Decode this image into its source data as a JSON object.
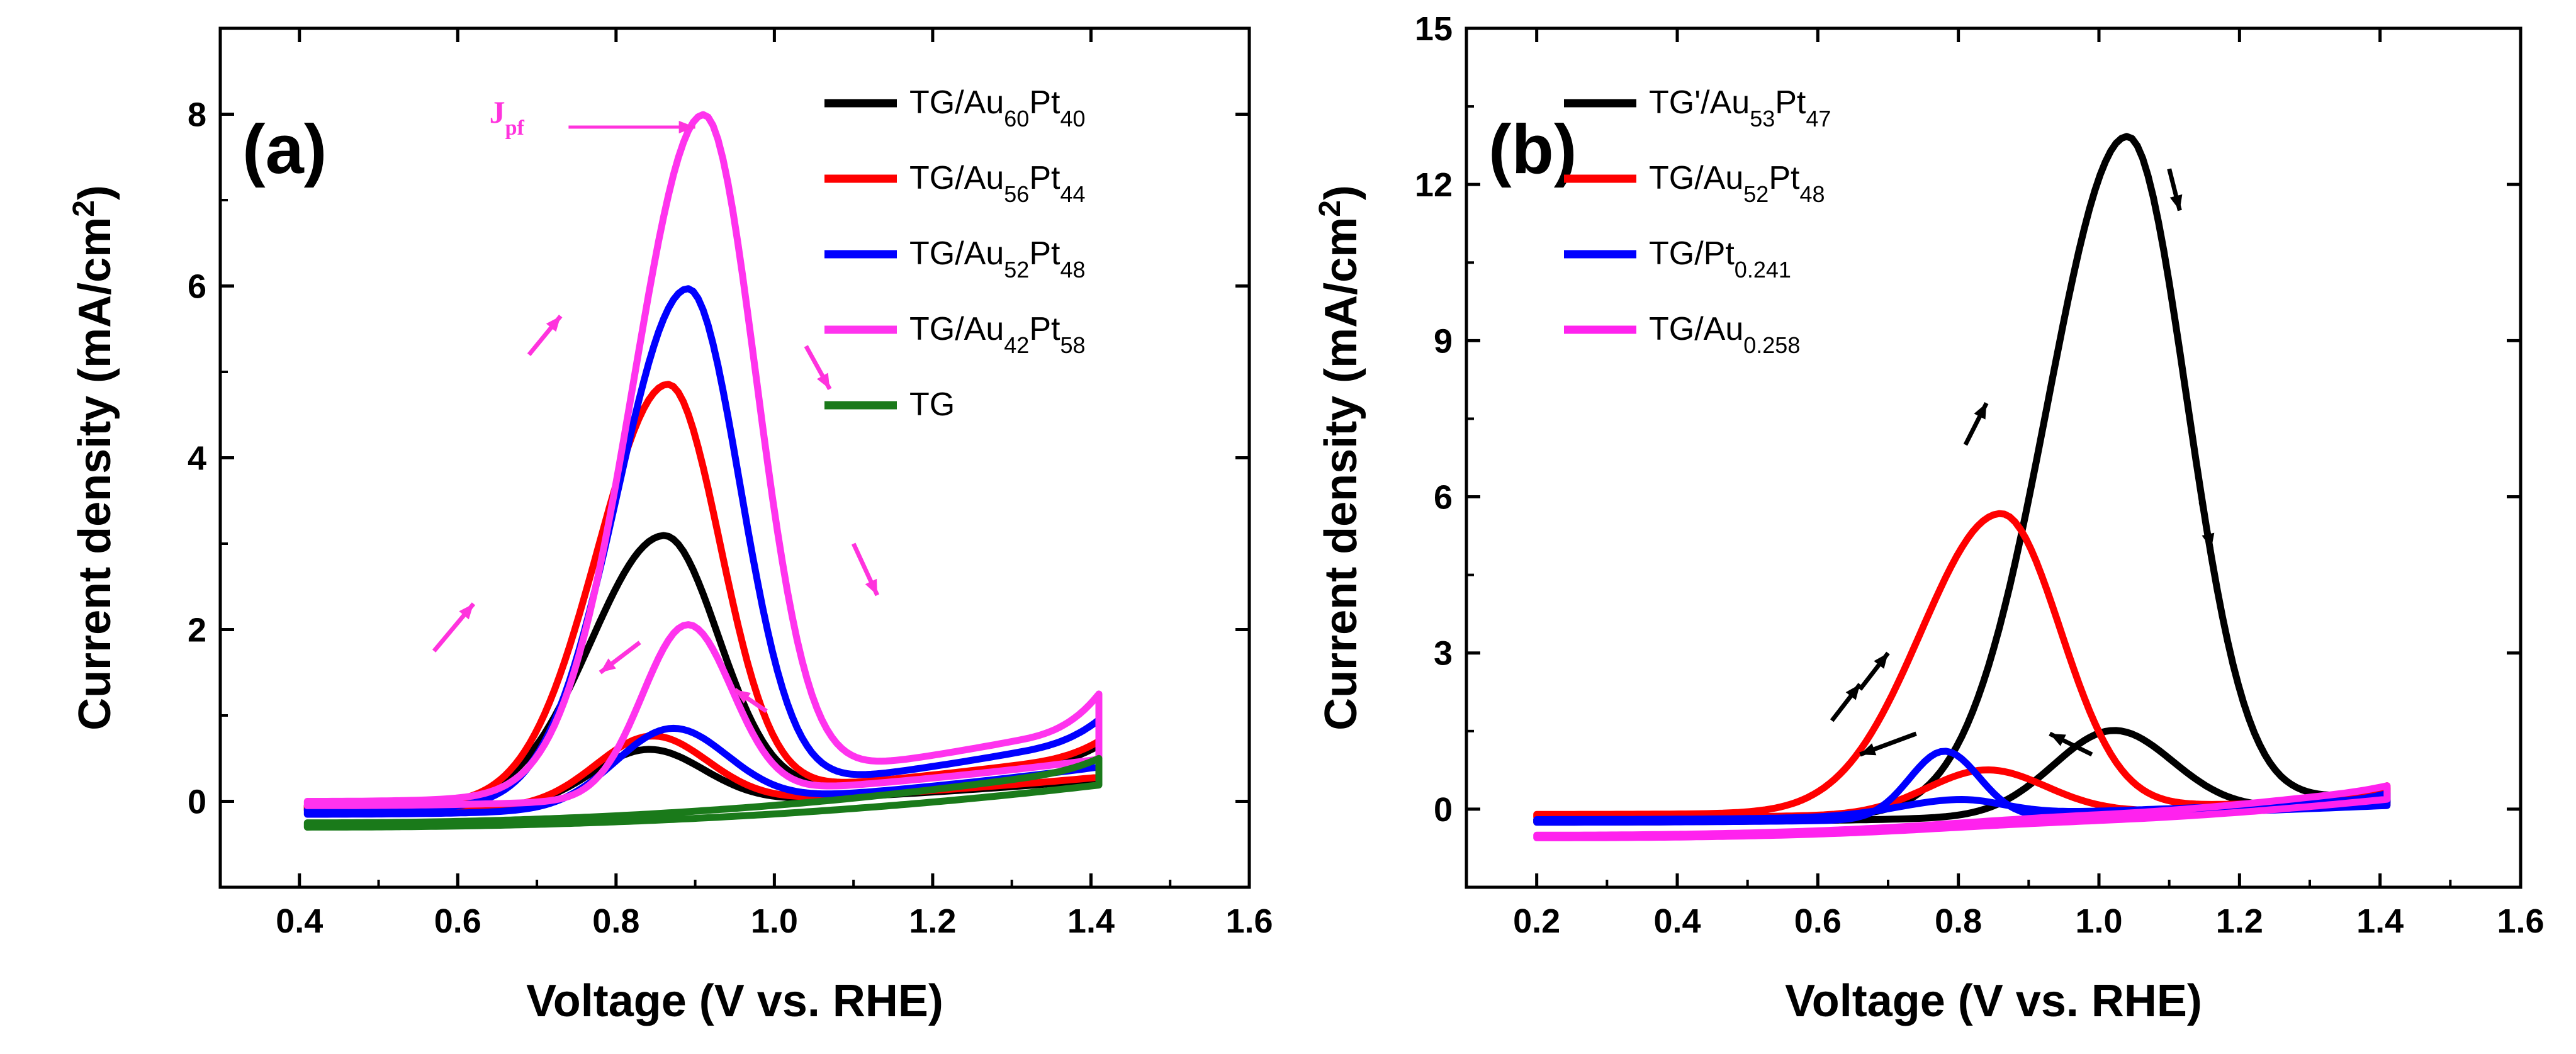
{
  "chart_data": [
    {
      "type": "line",
      "panel_label": "(a)",
      "xlabel": "Voltage (V vs. RHE)",
      "ylabel": "Current density (mA/cm²)",
      "ylabel_parts": {
        "main": "Current density (mA/cm",
        "sup": "2",
        "end": ")"
      },
      "xlim": [
        0.3,
        1.6
      ],
      "ylim": [
        -1.0,
        9.0
      ],
      "xticks": [
        "0.4",
        "0.6",
        "0.8",
        "1.0",
        "1.2",
        "1.4",
        "1.6"
      ],
      "yticks": [
        "0",
        "2",
        "4",
        "6",
        "8"
      ],
      "legend_position": "top-right",
      "annotation": {
        "text": "J",
        "sub": "pf",
        "color": "#ff33dd"
      },
      "series": [
        {
          "name": "TG/Au60Pt40",
          "label": {
            "pre": "TG/Au",
            "s1": "60",
            "mid": "Pt",
            "s2": "40"
          },
          "color": "#000000",
          "peak_x": 0.86,
          "peak_y": 3.05,
          "width": 0.13,
          "rev_peak": 0.65,
          "rev_width": 0.1,
          "baseline_end": 0.5,
          "tail": 0.65,
          "start_y": -0.05
        },
        {
          "name": "TG/Au56Pt44",
          "label": {
            "pre": "TG/Au",
            "s1": "56",
            "mid": "Pt",
            "s2": "44"
          },
          "color": "#ff0000",
          "peak_x": 0.865,
          "peak_y": 4.8,
          "width": 0.125,
          "rev_peak": 0.8,
          "rev_width": 0.1,
          "baseline_end": 0.55,
          "tail": 0.7,
          "start_y": -0.05
        },
        {
          "name": "TG/Au52Pt48",
          "label": {
            "pre": "TG/Au",
            "s1": "52",
            "mid": "Pt",
            "s2": "48"
          },
          "color": "#0000ff",
          "peak_x": 0.89,
          "peak_y": 5.9,
          "width": 0.125,
          "rev_peak": 0.9,
          "rev_width": 0.1,
          "baseline_end": 0.75,
          "tail": 0.95,
          "start_y": -0.1
        },
        {
          "name": "TG/Au42Pt58",
          "label": {
            "pre": "TG/Au",
            "s1": "42",
            "mid": "Pt",
            "s2": "58"
          },
          "color": "#ff33ee",
          "peak_x": 0.91,
          "peak_y": 7.8,
          "width": 0.125,
          "rev_peak": 2.0,
          "rev_width": 0.08,
          "baseline_end": 0.9,
          "tail": 1.25,
          "start_y": 0.0
        },
        {
          "name": "TG",
          "label": {
            "pre": "TG",
            "s1": "",
            "mid": "",
            "s2": ""
          },
          "color": "#1a7a1a",
          "peak_x": 0.9,
          "peak_y": 0.0,
          "width": 0.1,
          "rev_peak": 0.0,
          "rev_width": 0.1,
          "baseline_end": 0.4,
          "tail": 0.5,
          "start_y": -0.25
        }
      ]
    },
    {
      "type": "line",
      "panel_label": "(b)",
      "xlabel": "Voltage (V vs. RHE)",
      "ylabel": "Current density (mA/cm²)",
      "ylabel_parts": {
        "main": "Current density (mA/cm",
        "sup": "2",
        "end": ")"
      },
      "xlim": [
        0.1,
        1.6
      ],
      "ylim": [
        -1.5,
        15.0
      ],
      "xticks": [
        "0.2",
        "0.4",
        "0.6",
        "0.8",
        "1.0",
        "1.2",
        "1.4",
        "1.6"
      ],
      "yticks": [
        "0",
        "3",
        "6",
        "9",
        "12",
        "15"
      ],
      "legend_position": "top-left",
      "series": [
        {
          "name": "TG'/Au53Pt47",
          "label": {
            "pre": "TG'/Au",
            "s1": "53",
            "mid": "Pt",
            "s2": "47"
          },
          "color": "#000000",
          "peak_x": 1.04,
          "peak_y": 12.9,
          "width": 0.16,
          "rev_peak": 1.6,
          "rev_width": 0.12,
          "baseline_end": 0.3,
          "tail": 0.4,
          "start_y": -0.2
        },
        {
          "name": "TG/Au52Pt48",
          "label": {
            "pre": "TG/Au",
            "s1": "52",
            "mid": "Pt",
            "s2": "48"
          },
          "color": "#ff0000",
          "peak_x": 0.86,
          "peak_y": 5.7,
          "width": 0.16,
          "rev_peak": 0.85,
          "rev_width": 0.12,
          "baseline_end": 0.2,
          "tail": 0.45,
          "start_y": -0.1
        },
        {
          "name": "TG/Pt0.241",
          "label": {
            "pre": "TG/Pt",
            "s1": "0.241",
            "mid": "",
            "s2": ""
          },
          "color": "#0000ff",
          "peak_x": 0.8,
          "peak_y": 0.3,
          "width": 0.12,
          "rev_peak": 1.3,
          "rev_width": 0.07,
          "baseline_end": 0.2,
          "tail": 0.3,
          "start_y": -0.2
        },
        {
          "name": "TG/Au0.258",
          "label": {
            "pre": "TG/Au",
            "s1": "0.258",
            "mid": "",
            "s2": ""
          },
          "color": "#ff22ee",
          "peak_x": 0.9,
          "peak_y": 0.05,
          "width": 0.2,
          "rev_peak": 0.05,
          "rev_width": 0.2,
          "baseline_end": 0.4,
          "tail": 0.45,
          "start_y": -0.5
        }
      ]
    }
  ]
}
